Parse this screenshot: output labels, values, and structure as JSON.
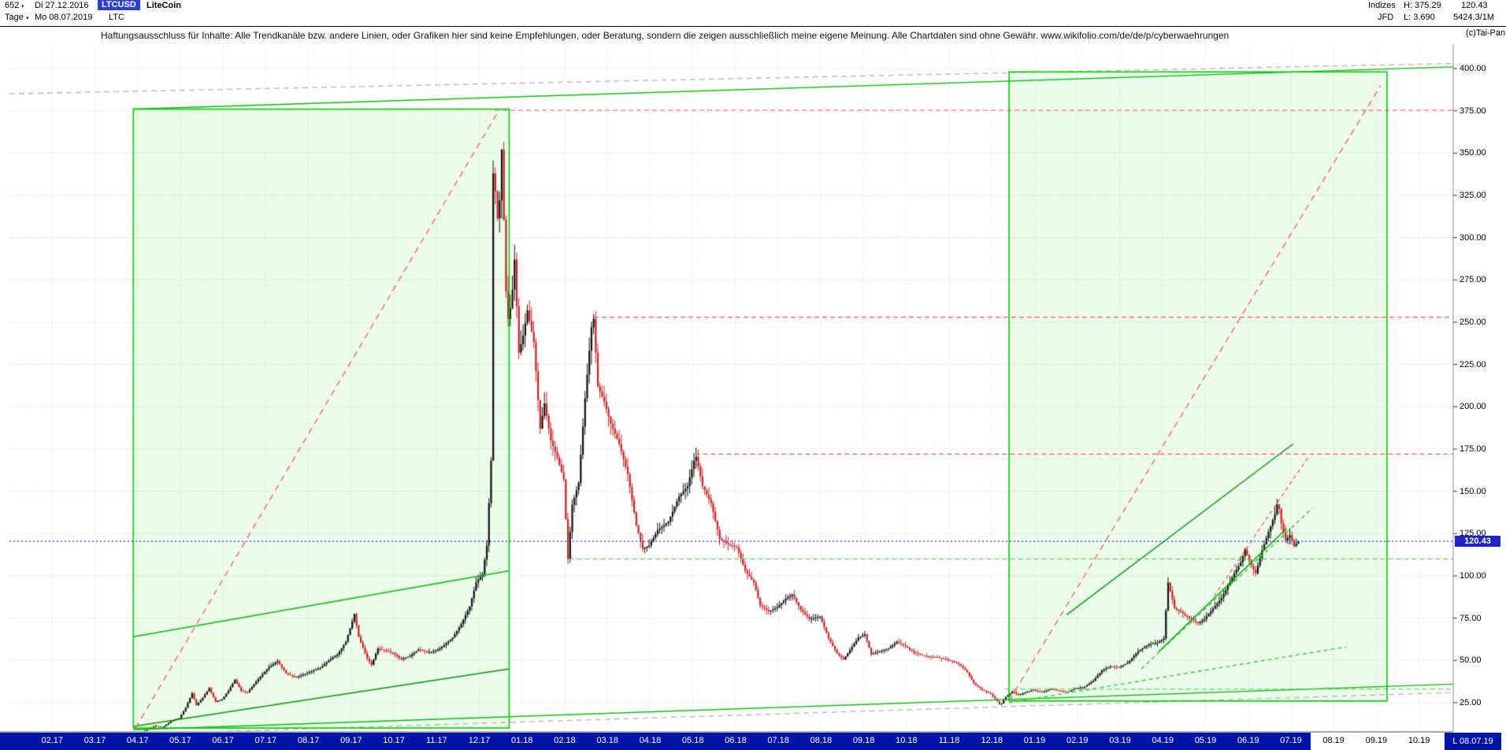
{
  "header": {
    "row1": {
      "bars_count": "652",
      "caret": "▾",
      "date_from": "Di 27.12.2016",
      "symbol": "LTCUSD",
      "instrument_name": "LiteCoin"
    },
    "row2": {
      "timeframe": "Tage",
      "caret": "▾",
      "date_to": "Mo 08.07.2019",
      "symbol_short": "LTC"
    },
    "right": {
      "indices_label": "Indizes",
      "high": "H: 375.29",
      "last": "120.43",
      "feed": "JFD",
      "low": "L: 3.690",
      "volume": "5424.3/1M",
      "copyright": "(c)Tai-Pan"
    }
  },
  "disclaimer": "Haftungsausschluss für Inhalte: Alle Trendkanäle bzw. andere Linien, oder Grafiken hier sind keine Empfehlungen, oder Beratung, sondern die zeigen ausschließlich meine eigene Meinung. Alle Chartdaten sind ohne Gewähr.  www.wikifolio.com/de/de/p/cyberwaehrungen",
  "price_marker": {
    "label": "120.43",
    "color": "#2222cc"
  },
  "last_date_marker": "L 08.07.19",
  "chart_data": {
    "type": "candlestick",
    "instrument": "LiteCoin LTCUSD",
    "timeframe": "Tage",
    "x_unit": "months since 27.12.2016",
    "xlim": [
      0,
      33.8
    ],
    "ylim": [
      8.2,
      414.44
    ],
    "high": 375.29,
    "low": 3.69,
    "last": 120.43,
    "data_end_t": 30.2,
    "bar_step": 0.05,
    "grid": true,
    "up_color": "#101010",
    "down_color": "#cc2222",
    "y_ticks": [
      {
        "value": 400,
        "label": "400.00"
      },
      {
        "value": 375,
        "label": "375.00"
      },
      {
        "value": 350,
        "label": "350.00"
      },
      {
        "value": 325,
        "label": "325.00"
      },
      {
        "value": 300,
        "label": "300.00"
      },
      {
        "value": 275,
        "label": "275.00"
      },
      {
        "value": 250,
        "label": "250.00"
      },
      {
        "value": 225,
        "label": "225.00"
      },
      {
        "value": 200,
        "label": "200.00"
      },
      {
        "value": 175,
        "label": "175.00"
      },
      {
        "value": 150,
        "label": "150.00"
      },
      {
        "value": 125,
        "label": "125.00"
      },
      {
        "value": 100,
        "label": "100.00"
      },
      {
        "value": 75,
        "label": "75.00"
      },
      {
        "value": 50,
        "label": "50.00"
      },
      {
        "value": 25,
        "label": "25.00"
      }
    ],
    "x_ticks": [
      {
        "t": 1,
        "label": "02.17"
      },
      {
        "t": 2,
        "label": "03.17"
      },
      {
        "t": 3,
        "label": "04.17"
      },
      {
        "t": 4,
        "label": "05.17"
      },
      {
        "t": 5,
        "label": "06.17"
      },
      {
        "t": 6,
        "label": "07.17"
      },
      {
        "t": 7,
        "label": "08.17"
      },
      {
        "t": 8,
        "label": "09.17"
      },
      {
        "t": 9,
        "label": "10.17"
      },
      {
        "t": 10,
        "label": "11.17"
      },
      {
        "t": 11,
        "label": "12.17"
      },
      {
        "t": 12,
        "label": "01.18"
      },
      {
        "t": 13,
        "label": "02.18"
      },
      {
        "t": 14,
        "label": "03.18"
      },
      {
        "t": 15,
        "label": "04.18"
      },
      {
        "t": 16,
        "label": "05.18"
      },
      {
        "t": 17,
        "label": "06.18"
      },
      {
        "t": 18,
        "label": "07.18"
      },
      {
        "t": 19,
        "label": "08.18"
      },
      {
        "t": 20,
        "label": "09.18"
      },
      {
        "t": 21,
        "label": "10.18"
      },
      {
        "t": 22,
        "label": "11.18"
      },
      {
        "t": 23,
        "label": "12.18"
      },
      {
        "t": 24,
        "label": "01.19"
      },
      {
        "t": 25,
        "label": "02.19"
      },
      {
        "t": 26,
        "label": "03.19"
      },
      {
        "t": 27,
        "label": "04.19"
      },
      {
        "t": 28,
        "label": "05.19"
      },
      {
        "t": 29,
        "label": "06.19"
      },
      {
        "t": 30,
        "label": "07.19"
      },
      {
        "t": 31,
        "label": "08.19"
      },
      {
        "t": 32,
        "label": "09.19"
      },
      {
        "t": 33,
        "label": "10.19"
      }
    ],
    "price_path": [
      [
        0,
        4.3
      ],
      [
        0.3,
        4.1
      ],
      [
        0.7,
        3.9
      ],
      [
        1,
        3.95
      ],
      [
        1.4,
        3.8
      ],
      [
        1.8,
        3.85
      ],
      [
        2.2,
        4.1
      ],
      [
        2.5,
        6.2
      ],
      [
        2.65,
        7.3
      ],
      [
        2.8,
        6.1
      ],
      [
        3,
        6.6
      ],
      [
        3.2,
        8.5
      ],
      [
        3.45,
        11.5
      ],
      [
        3.6,
        10.2
      ],
      [
        3.8,
        14
      ],
      [
        4,
        15.8
      ],
      [
        4.15,
        22
      ],
      [
        4.3,
        30.5
      ],
      [
        4.4,
        23.5
      ],
      [
        4.55,
        28
      ],
      [
        4.7,
        33.5
      ],
      [
        4.85,
        25.5
      ],
      [
        5,
        27
      ],
      [
        5.15,
        32
      ],
      [
        5.3,
        38.5
      ],
      [
        5.45,
        32
      ],
      [
        5.6,
        31
      ],
      [
        5.75,
        36
      ],
      [
        5.9,
        40.5
      ],
      [
        6.1,
        46
      ],
      [
        6.3,
        49.5
      ],
      [
        6.5,
        42.5
      ],
      [
        6.7,
        40
      ],
      [
        6.9,
        41.5
      ],
      [
        7.1,
        43.5
      ],
      [
        7.3,
        45.5
      ],
      [
        7.5,
        50
      ],
      [
        7.7,
        53.5
      ],
      [
        7.9,
        61
      ],
      [
        8.05,
        73
      ],
      [
        8.1,
        77.5
      ],
      [
        8.2,
        64
      ],
      [
        8.4,
        51
      ],
      [
        8.5,
        47.5
      ],
      [
        8.65,
        57
      ],
      [
        8.8,
        56
      ],
      [
        9,
        54.5
      ],
      [
        9.2,
        50.5
      ],
      [
        9.4,
        52.5
      ],
      [
        9.6,
        56.5
      ],
      [
        9.8,
        55
      ],
      [
        10,
        55.5
      ],
      [
        10.2,
        59
      ],
      [
        10.4,
        63.5
      ],
      [
        10.6,
        71.5
      ],
      [
        10.8,
        82
      ],
      [
        10.95,
        96
      ],
      [
        11.1,
        101
      ],
      [
        11.2,
        118
      ],
      [
        11.3,
        168
      ],
      [
        11.36,
        372
      ],
      [
        11.42,
        305
      ],
      [
        11.5,
        322
      ],
      [
        11.56,
        358
      ],
      [
        11.63,
        275
      ],
      [
        11.7,
        252
      ],
      [
        11.78,
        262
      ],
      [
        11.85,
        287
      ],
      [
        11.95,
        232
      ],
      [
        12.05,
        242
      ],
      [
        12.15,
        257
      ],
      [
        12.3,
        238
      ],
      [
        12.45,
        187
      ],
      [
        12.55,
        202
      ],
      [
        12.7,
        180
      ],
      [
        12.85,
        170
      ],
      [
        13,
        157
      ],
      [
        13.1,
        110
      ],
      [
        13.2,
        142
      ],
      [
        13.35,
        155
      ],
      [
        13.5,
        205
      ],
      [
        13.65,
        247
      ],
      [
        13.7,
        252
      ],
      [
        13.8,
        212
      ],
      [
        13.95,
        203
      ],
      [
        14.1,
        190
      ],
      [
        14.3,
        178
      ],
      [
        14.5,
        160
      ],
      [
        14.7,
        130
      ],
      [
        14.85,
        116
      ],
      [
        15,
        118
      ],
      [
        15.2,
        127
      ],
      [
        15.45,
        132
      ],
      [
        15.7,
        147
      ],
      [
        15.9,
        153
      ],
      [
        16.05,
        168
      ],
      [
        16.1,
        170.5
      ],
      [
        16.25,
        153
      ],
      [
        16.45,
        143
      ],
      [
        16.65,
        122
      ],
      [
        16.85,
        118.5
      ],
      [
        17.05,
        117
      ],
      [
        17.25,
        103
      ],
      [
        17.45,
        96
      ],
      [
        17.6,
        82.5
      ],
      [
        17.8,
        79
      ],
      [
        18,
        81.5
      ],
      [
        18.2,
        86.5
      ],
      [
        18.35,
        89
      ],
      [
        18.55,
        80
      ],
      [
        18.75,
        74.5
      ],
      [
        19,
        76
      ],
      [
        19.2,
        63
      ],
      [
        19.4,
        54
      ],
      [
        19.55,
        50.5
      ],
      [
        19.75,
        58
      ],
      [
        19.9,
        63.5
      ],
      [
        20.05,
        65.5
      ],
      [
        20.2,
        53.5
      ],
      [
        20.4,
        55.5
      ],
      [
        20.6,
        57
      ],
      [
        20.8,
        61
      ],
      [
        21,
        58.5
      ],
      [
        21.2,
        54.5
      ],
      [
        21.45,
        52.5
      ],
      [
        21.7,
        52
      ],
      [
        21.9,
        51
      ],
      [
        22.1,
        49.5
      ],
      [
        22.3,
        47
      ],
      [
        22.45,
        43
      ],
      [
        22.6,
        36.5
      ],
      [
        22.8,
        32.5
      ],
      [
        23,
        30
      ],
      [
        23.1,
        27.5
      ],
      [
        23.22,
        23.5
      ],
      [
        23.35,
        28.5
      ],
      [
        23.5,
        31.5
      ],
      [
        23.65,
        29.5
      ],
      [
        23.8,
        31
      ],
      [
        24,
        32.5
      ],
      [
        24.2,
        31
      ],
      [
        24.4,
        33
      ],
      [
        24.6,
        32
      ],
      [
        24.8,
        31.5
      ],
      [
        25,
        33.5
      ],
      [
        25.2,
        34.5
      ],
      [
        25.4,
        38
      ],
      [
        25.6,
        44
      ],
      [
        25.8,
        46.5
      ],
      [
        26,
        46
      ],
      [
        26.2,
        48.5
      ],
      [
        26.45,
        55.5
      ],
      [
        26.7,
        59.5
      ],
      [
        26.9,
        60.5
      ],
      [
        27.05,
        63
      ],
      [
        27.15,
        96
      ],
      [
        27.3,
        81
      ],
      [
        27.45,
        78.5
      ],
      [
        27.65,
        75
      ],
      [
        27.85,
        72
      ],
      [
        28,
        74.5
      ],
      [
        28.2,
        80.5
      ],
      [
        28.4,
        87
      ],
      [
        28.55,
        94
      ],
      [
        28.7,
        101.5
      ],
      [
        28.85,
        108
      ],
      [
        28.95,
        115.5
      ],
      [
        29.1,
        106
      ],
      [
        29.2,
        101.5
      ],
      [
        29.35,
        115
      ],
      [
        29.5,
        126
      ],
      [
        29.65,
        136.5
      ],
      [
        29.72,
        144.5
      ],
      [
        29.8,
        131
      ],
      [
        29.9,
        121
      ],
      [
        30,
        124
      ],
      [
        30.1,
        117.5
      ],
      [
        30.2,
        120.43
      ]
    ],
    "overlays": {
      "boxes": [
        {
          "t1": 2.9,
          "p1": 10,
          "t2": 11.7,
          "p2": 376,
          "fill": "rgba(0,220,0,0.08)",
          "stroke": "#00cc00"
        },
        {
          "t1": 23.4,
          "p1": 26,
          "t2": 32.25,
          "p2": 398,
          "fill": "rgba(0,220,0,0.08)",
          "stroke": "#00cc00"
        }
      ],
      "hlines": [
        {
          "p": 375.3,
          "t1": 11.36,
          "t2": 33.8,
          "color": "#ff5050",
          "dash": [
            6,
            4
          ]
        },
        {
          "p": 253,
          "t1": 13.68,
          "t2": 33.8,
          "color": "#ff5050",
          "dash": [
            6,
            4
          ]
        },
        {
          "p": 172,
          "t1": 16.05,
          "t2": 33.8,
          "color": "#ff5050",
          "dash": [
            6,
            4
          ]
        },
        {
          "p": 110,
          "t1": 13.1,
          "t2": 33.8,
          "color": "#44cc44",
          "dash": [
            6,
            4
          ]
        },
        {
          "p": 33,
          "t1": 23.3,
          "t2": 33.8,
          "color": "#44cc44",
          "dash": [
            6,
            4
          ]
        }
      ],
      "current_price_line": {
        "p": 120.43,
        "color": "#2525ee",
        "dash": [
          2,
          3
        ]
      },
      "lines": [
        {
          "t1": 0,
          "p1": 385,
          "t2": 33.8,
          "p2": 403,
          "color": "#b8b8b8",
          "dash": [
            7,
            5
          ]
        },
        {
          "t1": 0,
          "p1": 4,
          "t2": 33.8,
          "p2": 31,
          "color": "#b8b8b8",
          "dash": [
            7,
            5
          ]
        },
        {
          "t1": 2.9,
          "p1": 376,
          "t2": 33.8,
          "p2": 401,
          "color": "#00bb00"
        },
        {
          "t1": 2.9,
          "p1": 9,
          "t2": 33.8,
          "p2": 36,
          "color": "#00bb00"
        },
        {
          "t1": 2.9,
          "p1": 64,
          "t2": 11.7,
          "p2": 103,
          "color": "#00bb00"
        },
        {
          "t1": 2.9,
          "p1": 11,
          "t2": 11.7,
          "p2": 45,
          "color": "#009900"
        },
        {
          "t1": 24.75,
          "p1": 77,
          "t2": 30.05,
          "p2": 178,
          "color": "#009900"
        },
        {
          "t1": 26.9,
          "p1": 55,
          "t2": 29.9,
          "p2": 128,
          "color": "#009900"
        },
        {
          "t1": 26.5,
          "p1": 45,
          "t2": 30.5,
          "p2": 140,
          "color": "#33cc33",
          "dash": [
            5,
            4
          ]
        },
        {
          "t1": 23.4,
          "p1": 25,
          "t2": 31.3,
          "p2": 58,
          "color": "#33cc33",
          "dash": [
            5,
            4
          ]
        },
        {
          "t1": 2.95,
          "p1": 10,
          "t2": 11.45,
          "p2": 375,
          "color": "#ff6060",
          "dash": [
            8,
            6
          ]
        },
        {
          "t1": 23.4,
          "p1": 26,
          "t2": 32.1,
          "p2": 390,
          "color": "#ff6060",
          "dash": [
            8,
            6
          ]
        },
        {
          "t1": 28.2,
          "p1": 88,
          "t2": 30.4,
          "p2": 170,
          "color": "#ff6060",
          "dash": [
            5,
            4
          ]
        }
      ]
    }
  }
}
